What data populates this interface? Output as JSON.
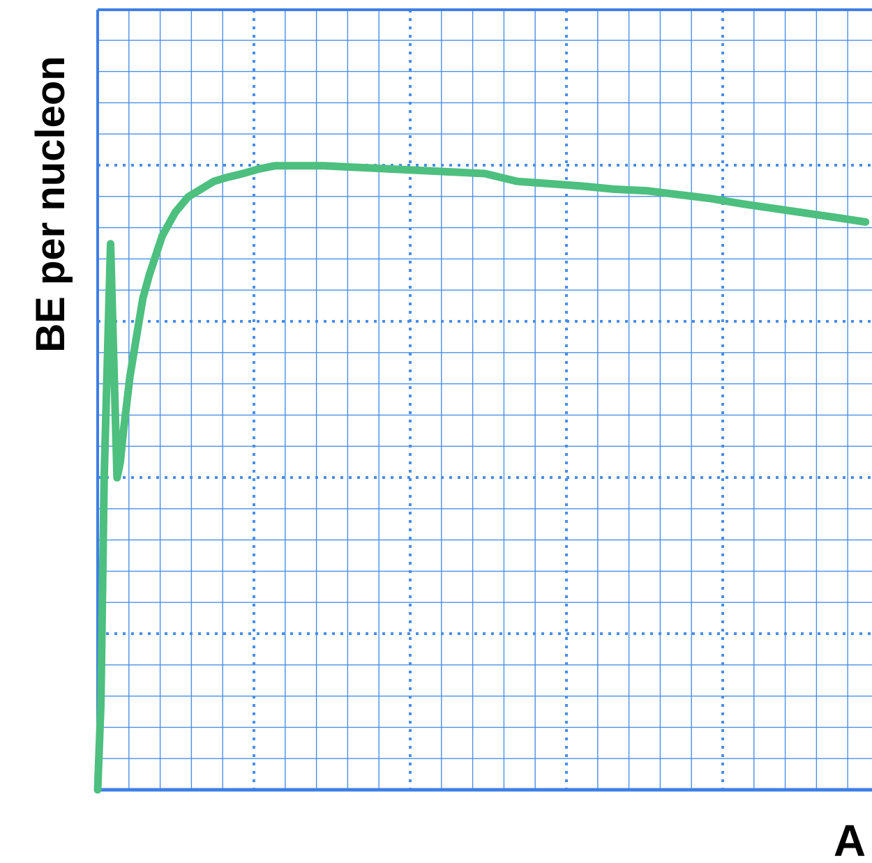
{
  "colors": {
    "grid": "#4a8ee8",
    "axis": "#3f7fe6",
    "major_grid": "#3f7fe6",
    "curve": "#4dbf7f",
    "text": "#000000"
  },
  "chart_data": {
    "type": "line",
    "title": "",
    "xlabel": "A",
    "ylabel": "BE per nucleon",
    "grid": true,
    "grid_style": "fine grid with dotted major lines",
    "x_tick_labels": [],
    "y_tick_labels": [],
    "xlim": [
      0,
      240
    ],
    "ylim": [
      0,
      10
    ],
    "series": [
      {
        "x": [
          0,
          1,
          2,
          3,
          4,
          5,
          6,
          7,
          8,
          10,
          12,
          14,
          16,
          20,
          24,
          28,
          32,
          36,
          40,
          45,
          50,
          55,
          60,
          70,
          80,
          90,
          100,
          110,
          120,
          130,
          140,
          150,
          160,
          170,
          180,
          190,
          200,
          210,
          220,
          230,
          238
        ],
        "y": [
          0,
          1.1,
          4.0,
          5.5,
          7.0,
          5.5,
          4.0,
          4.2,
          4.6,
          5.3,
          5.8,
          6.3,
          6.6,
          7.1,
          7.4,
          7.6,
          7.7,
          7.8,
          7.85,
          7.9,
          7.96,
          8.0,
          8.0,
          8.0,
          7.98,
          7.96,
          7.94,
          7.92,
          7.9,
          7.8,
          7.77,
          7.74,
          7.7,
          7.68,
          7.63,
          7.58,
          7.51,
          7.45,
          7.39,
          7.33,
          7.28
        ]
      }
    ]
  }
}
